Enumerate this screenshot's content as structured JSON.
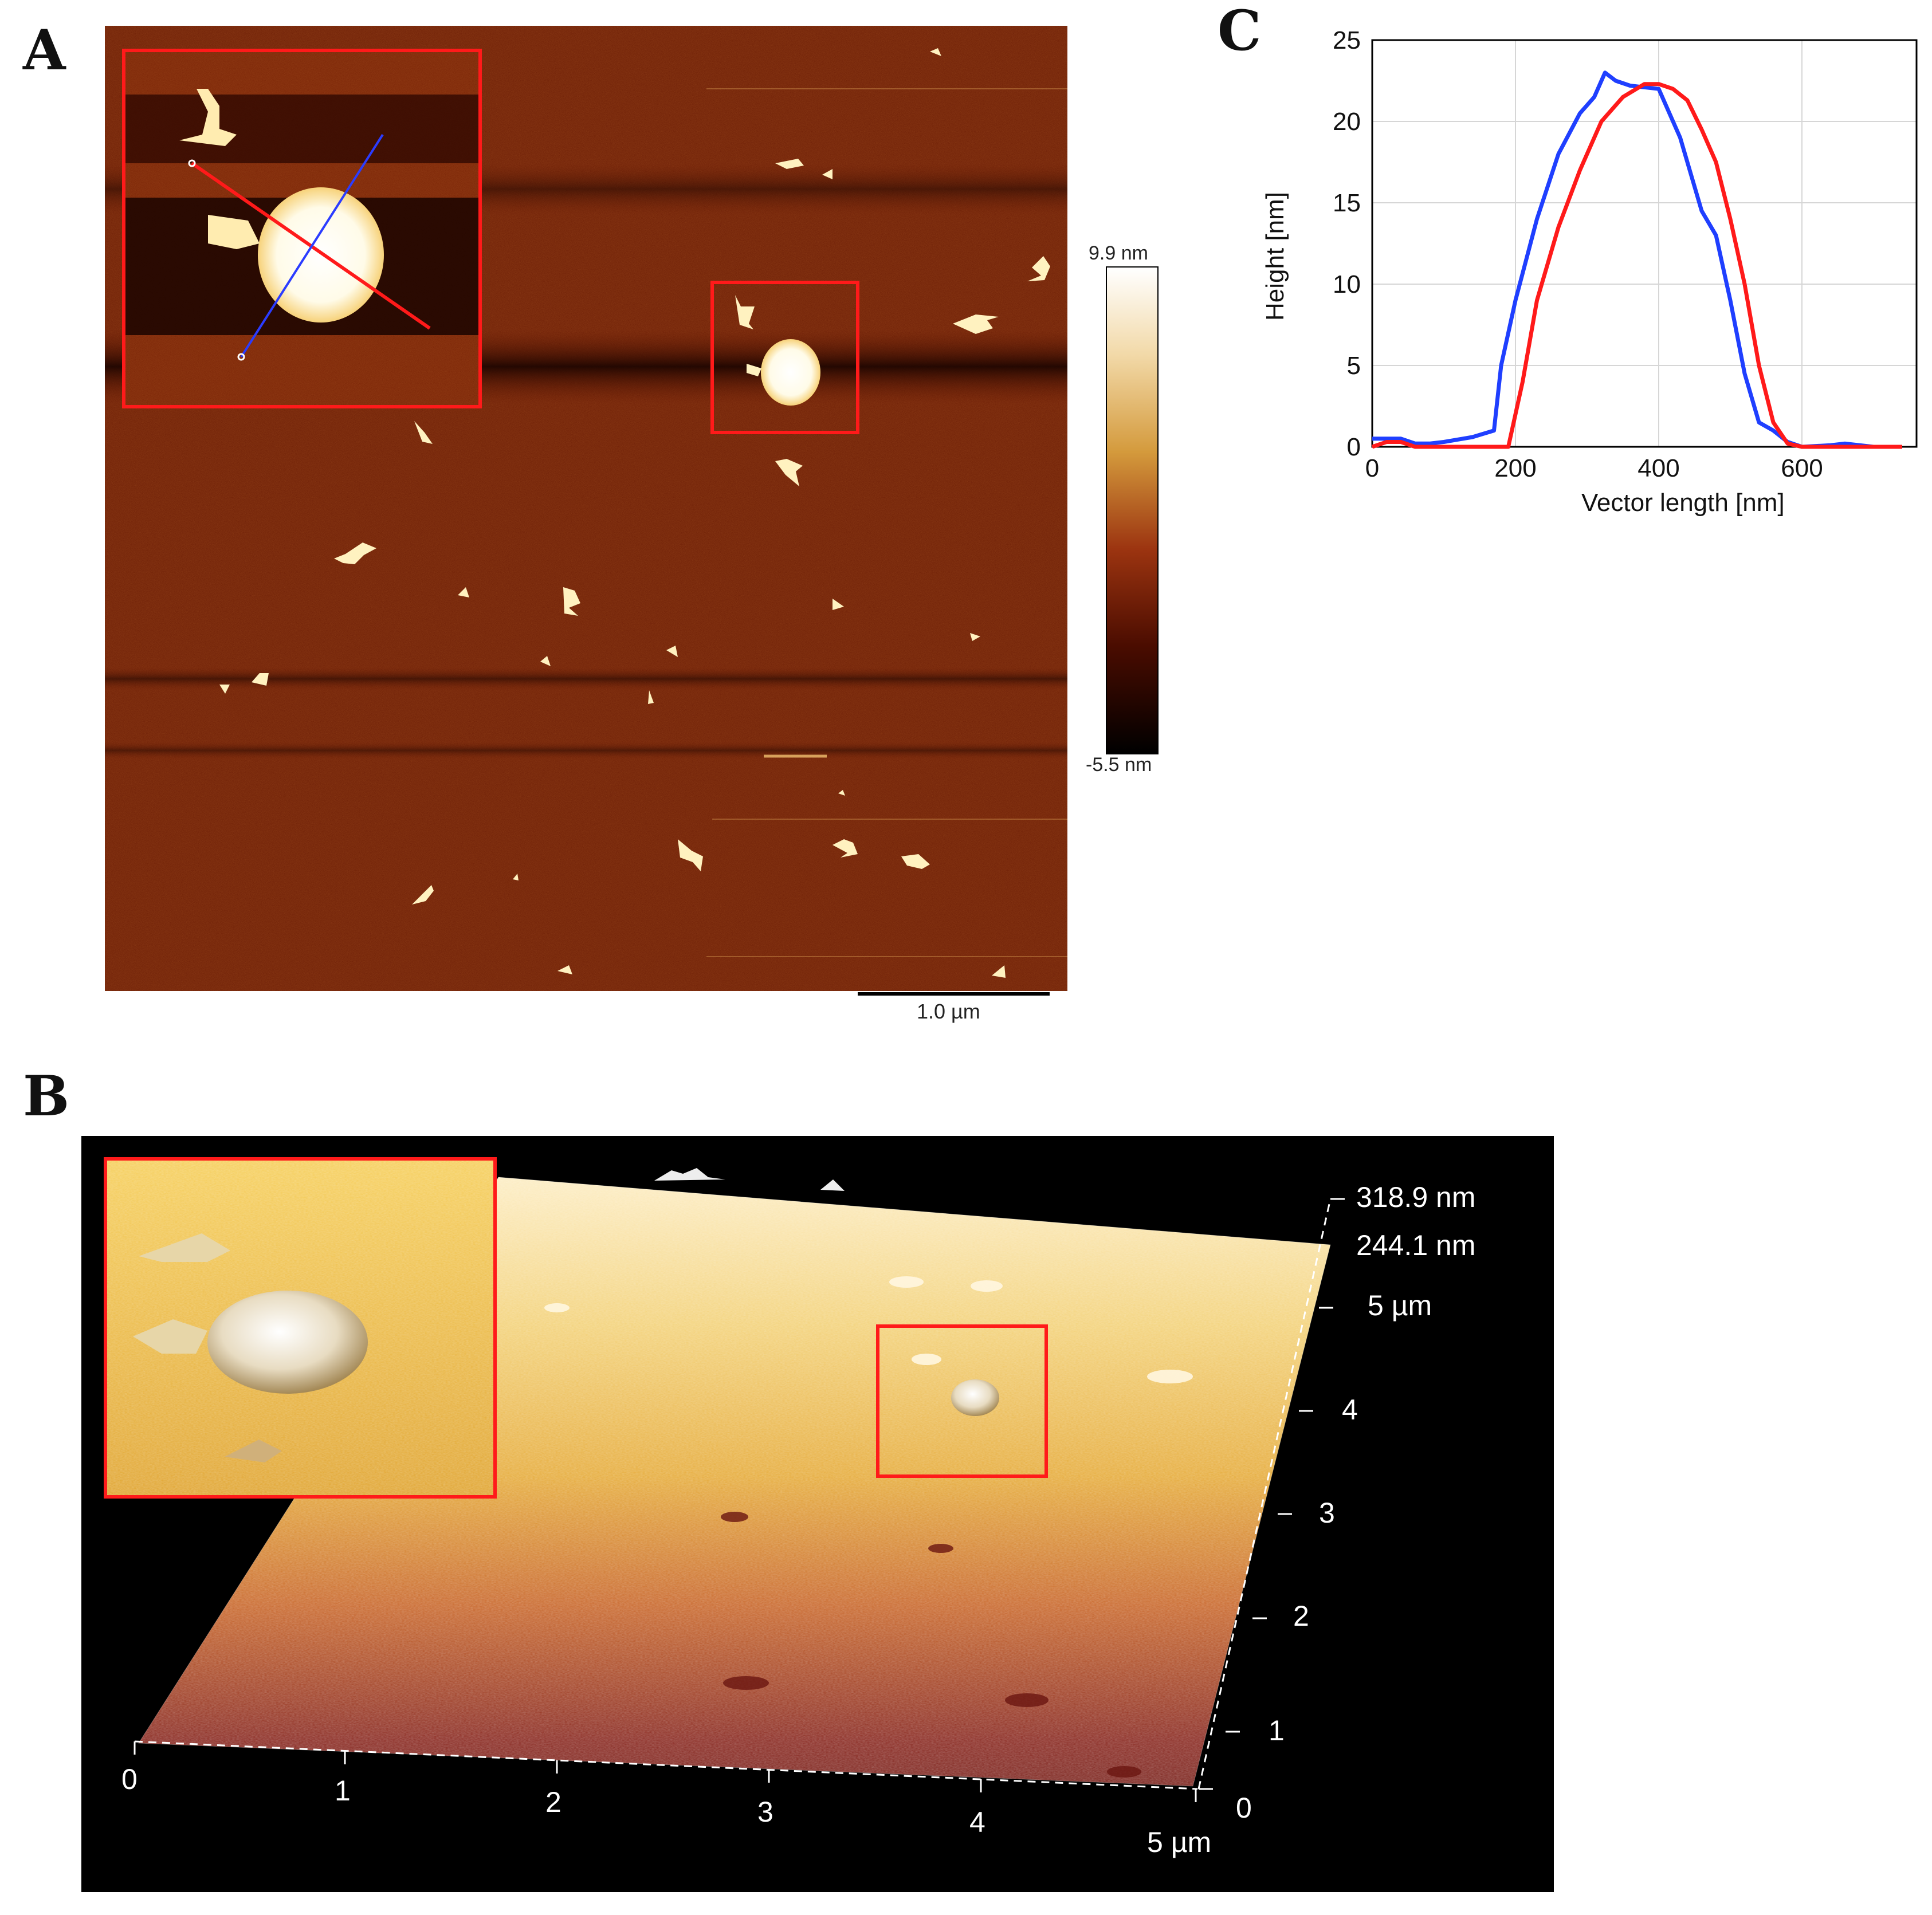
{
  "panels": {
    "a": {
      "letter": "A"
    },
    "b": {
      "letter": "B"
    },
    "c": {
      "letter": "C"
    }
  },
  "colorbar": {
    "max_label": "9.9 nm",
    "min_label": "-5.5 nm"
  },
  "scalebar": {
    "label": "1.0 µm"
  },
  "surface3d": {
    "z_labels": [
      "318.9 nm",
      "244.1 nm"
    ],
    "y_ticks": [
      "5 µm",
      "4",
      "3",
      "2",
      "1",
      "0"
    ],
    "x_ticks": [
      "0",
      "1",
      "2",
      "3",
      "4",
      "5 µm"
    ]
  },
  "colors": {
    "blue_profile": "#1f3fff",
    "red_profile": "#ff1a1a",
    "inset_border": "#ff1a1a"
  },
  "chart_data": {
    "type": "line",
    "xlabel": "Vector length [nm]",
    "ylabel": "Height [nm]",
    "xlim": [
      0,
      760
    ],
    "ylim": [
      0,
      25
    ],
    "x_ticks": [
      0,
      200,
      400,
      600
    ],
    "y_ticks": [
      0,
      5,
      10,
      15,
      20,
      25
    ],
    "grid": true,
    "series": [
      {
        "color": "#1f3fff",
        "x": [
          0,
          20,
          40,
          60,
          80,
          100,
          140,
          170,
          180,
          200,
          230,
          260,
          290,
          310,
          325,
          340,
          360,
          400,
          430,
          460,
          480,
          500,
          520,
          540,
          560,
          580,
          600,
          640,
          660,
          700,
          740
        ],
        "y": [
          0.5,
          0.5,
          0.5,
          0.2,
          0.2,
          0.3,
          0.6,
          1,
          5,
          9,
          14,
          18,
          20.5,
          21.5,
          23,
          22.5,
          22.2,
          22,
          19,
          14.5,
          13,
          9,
          4.5,
          1.5,
          1,
          0.3,
          0,
          0.1,
          0.2,
          0,
          0
        ]
      },
      {
        "color": "#ff1a1a",
        "x": [
          0,
          20,
          40,
          60,
          100,
          150,
          190,
          210,
          230,
          260,
          290,
          320,
          350,
          380,
          400,
          420,
          440,
          460,
          480,
          500,
          520,
          540,
          560,
          580,
          600,
          650,
          700,
          740
        ],
        "y": [
          0,
          0.3,
          0.3,
          0,
          0,
          0,
          0,
          4,
          9,
          13.5,
          17,
          20,
          21.5,
          22.3,
          22.3,
          22,
          21.3,
          19.5,
          17.5,
          14,
          10,
          5,
          1.5,
          0.2,
          0,
          0,
          0,
          0
        ]
      }
    ]
  }
}
